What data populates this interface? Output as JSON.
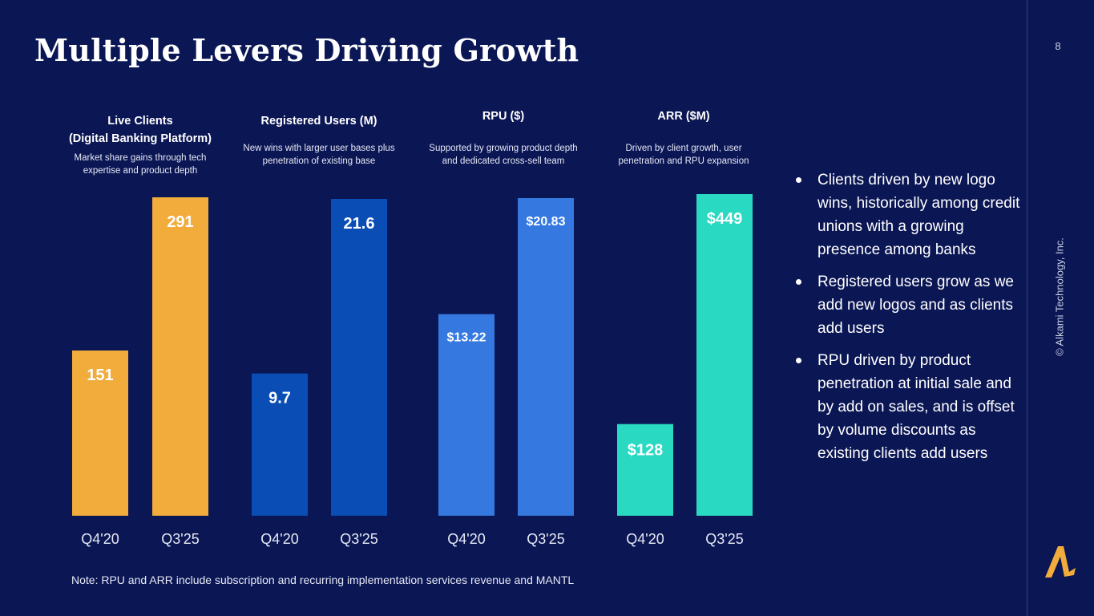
{
  "slide": {
    "title": "Multiple Levers Driving Growth",
    "page_number": "8",
    "copyright": "© Alkami Technology, Inc.",
    "note": "Note: RPU and ARR include subscription and recurring implementation services revenue and MANTL",
    "logo_icon": "alkami-logo-icon",
    "colors": {
      "background": "#0b1654",
      "logo": "#f2ac3b"
    }
  },
  "charts_meta": [
    {
      "title": "Live Clients",
      "subtitle": "(Digital Banking Platform)",
      "desc_lines": [
        "Market share gains through tech",
        "expertise and product depth"
      ]
    },
    {
      "title": "Registered Users (M)",
      "subtitle": "",
      "desc_lines": [
        "New wins with larger user bases plus",
        "penetration of existing base"
      ]
    },
    {
      "title": "RPU ($)",
      "subtitle": "",
      "desc_lines": [
        "Supported by growing product depth",
        "and dedicated cross-sell team"
      ]
    },
    {
      "title": "ARR ($M)",
      "subtitle": "",
      "desc_lines": [
        "Driven by client growth, user",
        "penetration and RPU expansion"
      ]
    }
  ],
  "chart_data": [
    {
      "type": "bar",
      "title": "Live Clients",
      "subtitle": "(Digital Banking Platform)",
      "categories": [
        "Q4'20",
        "Q3'25"
      ],
      "values": [
        151,
        291
      ],
      "labels": [
        "151",
        "291"
      ],
      "color": "#f2ac3b"
    },
    {
      "type": "bar",
      "title": "Registered Users (M)",
      "categories": [
        "Q4'20",
        "Q3'25"
      ],
      "values": [
        9.7,
        21.6
      ],
      "labels": [
        "9.7",
        "21.6"
      ],
      "color": "#0a4db5"
    },
    {
      "type": "bar",
      "title": "RPU ($)",
      "categories": [
        "Q4'20",
        "Q3'25"
      ],
      "values": [
        13.22,
        20.83
      ],
      "labels": [
        "$13.22",
        "$20.83"
      ],
      "color": "#3579e0"
    },
    {
      "type": "bar",
      "title": "ARR ($M)",
      "categories": [
        "Q4'20",
        "Q3'25"
      ],
      "values": [
        128,
        449
      ],
      "labels": [
        "$128",
        "$449"
      ],
      "color": "#2ad9c2"
    }
  ],
  "bullets": [
    "Clients driven by new logo wins, historically among credit unions with a growing presence among banks",
    "Registered users grow as we add new logos and as clients add users",
    "RPU driven by product penetration at initial sale and by add on sales, and is offset by volume discounts as existing clients add users"
  ]
}
